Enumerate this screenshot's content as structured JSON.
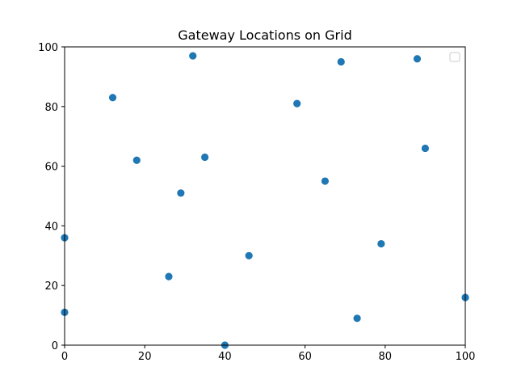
{
  "chart_data": {
    "type": "scatter",
    "title": "Gateway Locations on Grid",
    "xlabel": "",
    "ylabel": "",
    "xlim": [
      0,
      100
    ],
    "ylim": [
      0,
      100
    ],
    "xticks": [
      0,
      20,
      40,
      60,
      80,
      100
    ],
    "yticks": [
      0,
      20,
      40,
      60,
      80,
      100
    ],
    "grid": false,
    "legend": {
      "placement": "upper right",
      "entries": []
    },
    "marker_color": "#1f77b4",
    "points": [
      {
        "x": 0,
        "y": 36
      },
      {
        "x": 0,
        "y": 11
      },
      {
        "x": 12,
        "y": 83
      },
      {
        "x": 18,
        "y": 62
      },
      {
        "x": 26,
        "y": 23
      },
      {
        "x": 29,
        "y": 51
      },
      {
        "x": 32,
        "y": 97
      },
      {
        "x": 35,
        "y": 63
      },
      {
        "x": 40,
        "y": 0
      },
      {
        "x": 46,
        "y": 30
      },
      {
        "x": 58,
        "y": 81
      },
      {
        "x": 65,
        "y": 55
      },
      {
        "x": 69,
        "y": 95
      },
      {
        "x": 73,
        "y": 9
      },
      {
        "x": 79,
        "y": 34
      },
      {
        "x": 88,
        "y": 96
      },
      {
        "x": 90,
        "y": 66
      },
      {
        "x": 100,
        "y": 16
      }
    ]
  }
}
